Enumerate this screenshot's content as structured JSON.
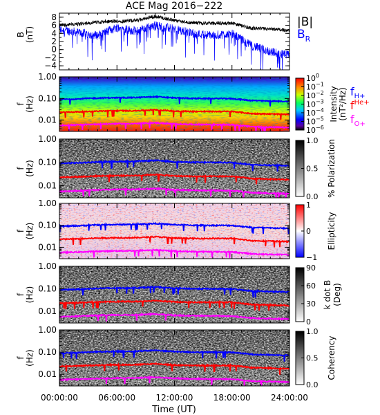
{
  "title": "ACE Mag 2016−222",
  "x_axis": {
    "label": "Time (UT)",
    "tick_labels": [
      "00:00:00",
      "06:00:00",
      "12:00:00",
      "18:00:00",
      "24:00:00"
    ],
    "range_hours": [
      0,
      24
    ]
  },
  "mag_panel": {
    "ylabel_main": "B",
    "ylabel_unit": "(nT)",
    "yticks": [
      "8",
      "6",
      "4",
      "2",
      "0",
      "−2",
      "−4"
    ],
    "legend_B": "|B|",
    "legend_BR_main": "B",
    "legend_BR_sub": "R",
    "color_B": "#000000",
    "color_BR": "#0000ff"
  },
  "spectrogram_panels": {
    "ylabel_main": "f",
    "ylabel_unit": "(Hz)",
    "yticks": [
      "1.00",
      "0.10",
      "0.01"
    ]
  },
  "gyro_legend": [
    {
      "main": "f",
      "sub": "H+",
      "position": "sub",
      "color": "#0000ff"
    },
    {
      "main": "f",
      "sub": "He+",
      "position": "sup",
      "color": "#ff0000"
    },
    {
      "main": "f",
      "sub": "O+",
      "position": "sub",
      "color": "#ff00ff"
    }
  ],
  "colorbars": {
    "intensity": {
      "label": "Intensity",
      "unit": "(nT²/Hz)",
      "ticks": [
        {
          "base": "10",
          "exp": "0"
        },
        {
          "base": "10",
          "exp": "−1"
        },
        {
          "base": "10",
          "exp": "−2"
        },
        {
          "base": "10",
          "exp": "−3"
        },
        {
          "base": "10",
          "exp": "−4"
        },
        {
          "base": "10",
          "exp": "−5"
        },
        {
          "base": "10",
          "exp": "−6"
        }
      ]
    },
    "polarization": {
      "label": "% Polarization",
      "ticks": [
        "1.0",
        "0.5",
        "0.0"
      ]
    },
    "ellipticity": {
      "label": "Ellipticity",
      "ticks": [
        "1",
        "0",
        "−1"
      ]
    },
    "kdotb": {
      "label_main": "k dot B",
      "label_unit": "(Deg)",
      "ticks": [
        "90",
        "60",
        "30",
        "0"
      ]
    },
    "coherency": {
      "label": "Coherency",
      "ticks": [
        "1.0",
        "0.5",
        "0.0"
      ]
    }
  },
  "chart_data": {
    "type": "line",
    "title": "ACE Mag 2016−222",
    "xlabel": "Time (UT)",
    "x_hours": [
      0,
      2,
      4,
      6,
      8,
      10,
      12,
      14,
      16,
      18,
      20,
      22,
      24
    ],
    "B_magnitude": {
      "name": "|B|",
      "ylabel": "B (nT)",
      "ylim": [
        -5,
        9
      ],
      "values": [
        6.0,
        6.3,
        6.8,
        7.0,
        7.2,
        8.2,
        7.2,
        6.6,
        6.5,
        6.5,
        5.3,
        5.0,
        4.8
      ]
    },
    "B_radial": {
      "name": "B_R",
      "values": [
        5.0,
        4.2,
        3.5,
        5.5,
        4.5,
        6.0,
        5.0,
        4.0,
        3.5,
        4.0,
        1.0,
        -0.5,
        -1.5
      ]
    },
    "gyrofrequencies_hz": {
      "yscale": "log",
      "ylim": [
        0.003,
        1.0
      ],
      "series": [
        {
          "name": "f_H+",
          "values": [
            0.09,
            0.095,
            0.104,
            0.108,
            0.11,
            0.12,
            0.106,
            0.1,
            0.099,
            0.098,
            0.08,
            0.075,
            0.072
          ]
        },
        {
          "name": "f_He+",
          "values": [
            0.023,
            0.024,
            0.026,
            0.027,
            0.027,
            0.03,
            0.026,
            0.025,
            0.025,
            0.025,
            0.02,
            0.019,
            0.018
          ]
        },
        {
          "name": "f_O+",
          "values": [
            0.0057,
            0.006,
            0.0065,
            0.0068,
            0.0069,
            0.0075,
            0.0066,
            0.0063,
            0.0062,
            0.0061,
            0.005,
            0.0047,
            0.0045
          ]
        }
      ]
    }
  }
}
